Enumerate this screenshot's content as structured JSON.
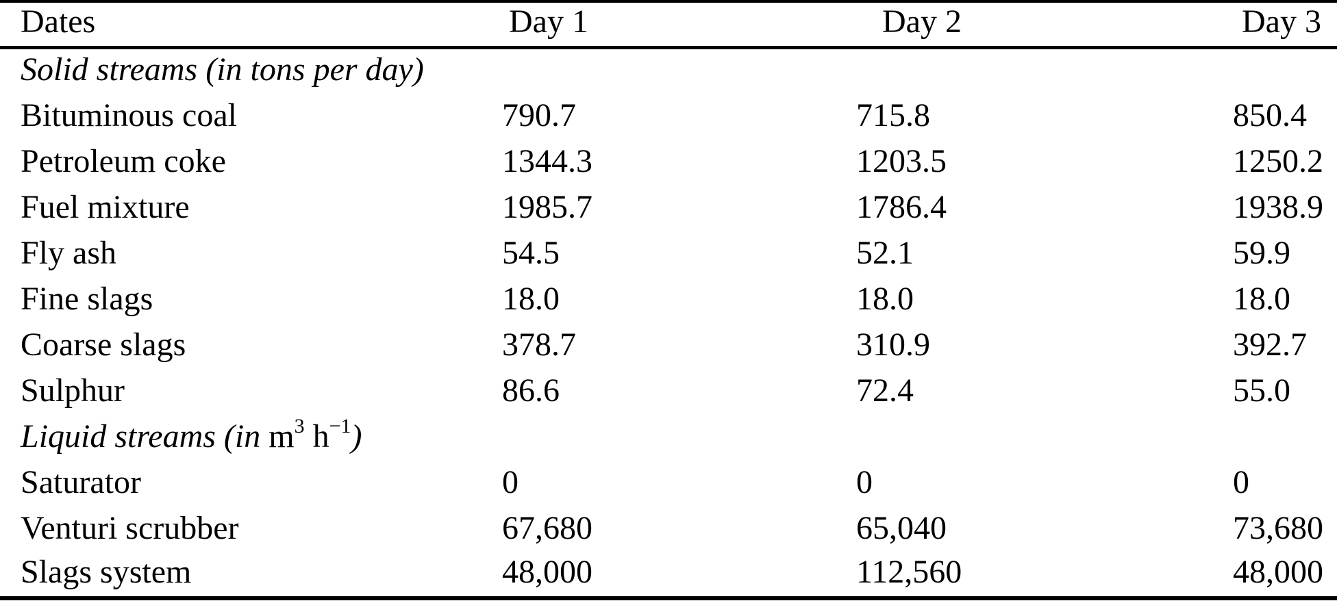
{
  "table": {
    "header": {
      "dates": "Dates",
      "day1": "Day 1",
      "day2": "Day 2",
      "day3": "Day 3"
    },
    "solid_section_label": "Solid streams (in tons per day)",
    "liquid_section": {
      "prefix": "Liquid streams (in ",
      "unit_m": "m",
      "sup_3": "3",
      "unit_h": " h",
      "sup_minus_1": "−1",
      "suffix": ")"
    },
    "solid_rows": [
      {
        "label": "Bituminous coal",
        "day1": "790.7",
        "day2": "715.8",
        "day3": "850.4"
      },
      {
        "label": "Petroleum coke",
        "day1": "1344.3",
        "day2": "1203.5",
        "day3": "1250.2"
      },
      {
        "label": "Fuel mixture",
        "day1": "1985.7",
        "day2": "1786.4",
        "day3": "1938.9"
      },
      {
        "label": "Fly ash",
        "day1": "54.5",
        "day2": "52.1",
        "day3": "59.9"
      },
      {
        "label": "Fine slags",
        "day1": "18.0",
        "day2": "18.0",
        "day3": "18.0"
      },
      {
        "label": "Coarse slags",
        "day1": "378.7",
        "day2": "310.9",
        "day3": "392.7"
      },
      {
        "label": "Sulphur",
        "day1": "86.6",
        "day2": "72.4",
        "day3": "55.0"
      }
    ],
    "liquid_rows": [
      {
        "label": "Saturator",
        "day1": "0",
        "day2": "0",
        "day3": "0"
      },
      {
        "label": "Venturi scrubber",
        "day1": "67,680",
        "day2": "65,040",
        "day3": "73,680"
      },
      {
        "label": "Slags system",
        "day1": "48,000",
        "day2": "112,560",
        "day3": "48,000"
      }
    ]
  }
}
